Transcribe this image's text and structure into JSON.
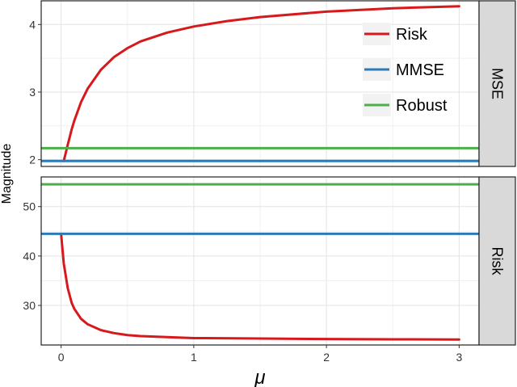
{
  "chart_data": {
    "type": "line",
    "xlabel": "μ",
    "ylabel": "Magnitude",
    "xlim": [
      -0.15,
      3.15
    ],
    "xticks": [
      0,
      1,
      2,
      3
    ],
    "grid": true,
    "legend_position": "top-right",
    "legend": [
      {
        "name": "Risk",
        "color": "#d7191c"
      },
      {
        "name": "MMSE",
        "color": "#2c7bb6"
      },
      {
        "name": "Robust",
        "color": "#4daf4a"
      }
    ],
    "panels": [
      {
        "strip_label": "MSE",
        "ylim": [
          1.9,
          4.35
        ],
        "yticks": [
          2,
          3,
          4
        ],
        "series": [
          {
            "name": "Risk",
            "color": "#d7191c",
            "x": [
              0.02,
              0.05,
              0.08,
              0.1,
              0.15,
              0.2,
              0.3,
              0.4,
              0.5,
              0.6,
              0.8,
              1.0,
              1.25,
              1.5,
              2.0,
              2.5,
              3.0
            ],
            "y": [
              1.98,
              2.22,
              2.45,
              2.58,
              2.85,
              3.05,
              3.33,
              3.52,
              3.65,
              3.75,
              3.88,
              3.97,
              4.05,
              4.11,
              4.19,
              4.24,
              4.27
            ]
          },
          {
            "name": "MMSE",
            "color": "#2c7bb6",
            "x": [
              -0.15,
              3.15
            ],
            "y": [
              1.98,
              1.98
            ]
          },
          {
            "name": "Robust",
            "color": "#4daf4a",
            "x": [
              -0.15,
              3.15
            ],
            "y": [
              2.17,
              2.17
            ]
          }
        ]
      },
      {
        "strip_label": "Risk",
        "ylim": [
          22,
          56
        ],
        "yticks": [
          30,
          40,
          50
        ],
        "series": [
          {
            "name": "Risk",
            "color": "#d7191c",
            "x": [
              0.0,
              0.02,
              0.05,
              0.08,
              0.1,
              0.15,
              0.2,
              0.3,
              0.4,
              0.5,
              0.6,
              0.8,
              1.0,
              1.5,
              2.0,
              2.5,
              3.0
            ],
            "y": [
              44.5,
              38.5,
              33.5,
              30.5,
              29.3,
              27.3,
              26.2,
              25.0,
              24.4,
              24.0,
              23.8,
              23.6,
              23.4,
              23.3,
              23.2,
              23.15,
              23.1
            ]
          },
          {
            "name": "MMSE",
            "color": "#2c7bb6",
            "x": [
              -0.15,
              3.15
            ],
            "y": [
              44.5,
              44.5
            ]
          },
          {
            "name": "Robust",
            "color": "#4daf4a",
            "x": [
              -0.15,
              3.15
            ],
            "y": [
              54.5,
              54.5
            ]
          }
        ]
      }
    ]
  }
}
